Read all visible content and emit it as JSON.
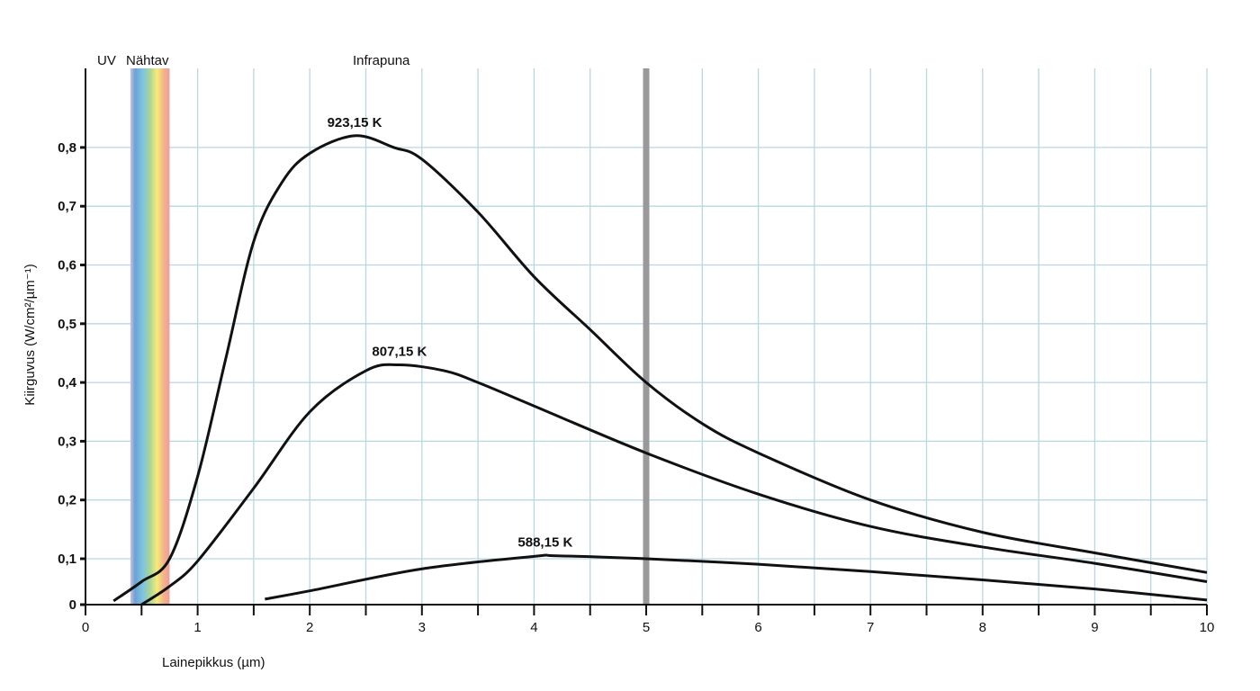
{
  "chart_data": {
    "type": "line",
    "title": "",
    "xlabel": "Lainepikkus (µm)",
    "ylabel": "Kiirguvus (W/cm²/µm⁻¹)",
    "xlim": [
      0,
      10
    ],
    "ylim": [
      0,
      0.9
    ],
    "x_ticks": [
      "0",
      "1",
      "2",
      "3",
      "4",
      "5",
      "6",
      "7",
      "8",
      "9",
      "10"
    ],
    "y_ticks": [
      "0",
      "0,1",
      "0,2",
      "0,3",
      "0,4",
      "0,5",
      "0,6",
      "0,7",
      "0,8"
    ],
    "grid": true,
    "region_labels": {
      "uv": "UV",
      "visible": "Nähtav",
      "infrared": "Infrapuna"
    },
    "visible_band": [
      0.4,
      0.75
    ],
    "marker_line_x": 5,
    "colors": {
      "grid": "#b9d7df",
      "curve": "#111111",
      "marker_line": "#999999"
    },
    "series": [
      {
        "name": "923,15 K",
        "label_at": [
          2.4,
          0.82
        ],
        "points": [
          [
            0.25,
            0.008
          ],
          [
            0.5,
            0.05
          ],
          [
            0.75,
            0.1
          ],
          [
            1,
            0.24
          ],
          [
            1.25,
            0.44
          ],
          [
            1.5,
            0.64
          ],
          [
            1.75,
            0.74
          ],
          [
            2,
            0.79
          ],
          [
            2.4,
            0.82
          ],
          [
            2.75,
            0.8
          ],
          [
            3,
            0.78
          ],
          [
            3.5,
            0.69
          ],
          [
            4,
            0.58
          ],
          [
            4.5,
            0.49
          ],
          [
            5,
            0.4
          ],
          [
            5.5,
            0.33
          ],
          [
            6,
            0.28
          ],
          [
            7,
            0.2
          ],
          [
            8,
            0.145
          ],
          [
            9,
            0.11
          ],
          [
            10,
            0.07
          ]
        ]
      },
      {
        "name": "807,15 K",
        "label_at": [
          2.8,
          0.43
        ],
        "points": [
          [
            0.5,
            0.0
          ],
          [
            0.75,
            0.04
          ],
          [
            1,
            0.095
          ],
          [
            1.5,
            0.22
          ],
          [
            2,
            0.35
          ],
          [
            2.5,
            0.42
          ],
          [
            2.8,
            0.43
          ],
          [
            3.2,
            0.42
          ],
          [
            3.5,
            0.4
          ],
          [
            4,
            0.36
          ],
          [
            5,
            0.28
          ],
          [
            6,
            0.21
          ],
          [
            7,
            0.155
          ],
          [
            8,
            0.12
          ],
          [
            9,
            0.09
          ],
          [
            10,
            0.05
          ]
        ]
      },
      {
        "name": "588,15 K",
        "label_at": [
          4.1,
          0.105
        ],
        "points": [
          [
            1.6,
            0.012
          ],
          [
            2,
            0.03
          ],
          [
            3,
            0.078
          ],
          [
            4,
            0.104
          ],
          [
            4.2,
            0.105
          ],
          [
            5,
            0.1
          ],
          [
            6,
            0.088
          ],
          [
            7,
            0.072
          ],
          [
            8,
            0.054
          ],
          [
            9,
            0.034
          ],
          [
            10,
            0.01
          ]
        ]
      }
    ]
  }
}
